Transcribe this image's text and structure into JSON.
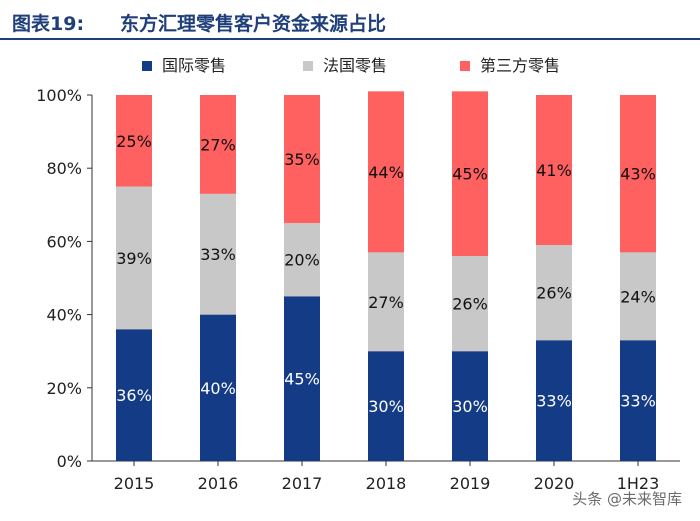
{
  "header": {
    "figure_label": "图表19:",
    "title": "东方汇理零售客户资金来源占比"
  },
  "colors": {
    "international": "#143b86",
    "france": "#c8c8c8",
    "third_party": "#ff6060",
    "header": "#1f3f7a"
  },
  "watermark": "头条 @未来智库",
  "chart_data": {
    "type": "bar",
    "stacked": true,
    "categories": [
      "2015",
      "2016",
      "2017",
      "2018",
      "2019",
      "2020",
      "1H23"
    ],
    "series": [
      {
        "name": "国际零售",
        "values": [
          36,
          40,
          45,
          30,
          30,
          33,
          33
        ],
        "labels": [
          "36%",
          "40%",
          "45%",
          "30%",
          "30%",
          "33%",
          "33%"
        ],
        "color": "#143b86"
      },
      {
        "name": "法国零售",
        "values": [
          39,
          33,
          20,
          27,
          26,
          26,
          24
        ],
        "labels": [
          "39%",
          "33%",
          "20%",
          "27%",
          "26%",
          "26%",
          "24%"
        ],
        "color": "#c8c8c8"
      },
      {
        "name": "第三方零售",
        "values": [
          25,
          27,
          35,
          44,
          45,
          41,
          43
        ],
        "labels": [
          "25%",
          "27%",
          "35%",
          "44%",
          "45%",
          "41%",
          "43%"
        ],
        "color": "#ff6060"
      }
    ],
    "ylim": [
      0,
      100
    ],
    "yticks": [
      "0%",
      "20%",
      "40%",
      "60%",
      "80%",
      "100%"
    ],
    "legend_position": "top",
    "grid": false
  }
}
